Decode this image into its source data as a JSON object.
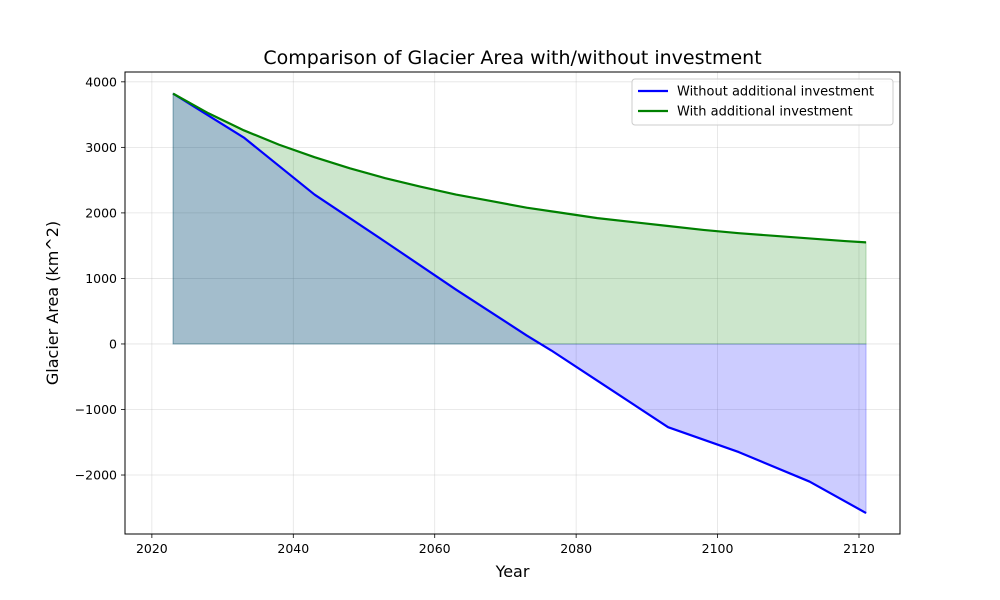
{
  "chart_data": {
    "type": "area",
    "title": "Comparison of Glacier Area with/without investment",
    "xlabel": "Year",
    "ylabel": "Glacier Area (km^2)",
    "xlim": [
      2016.2,
      2125.8
    ],
    "ylim": [
      -2900,
      4150
    ],
    "x_ticks": [
      2020,
      2040,
      2060,
      2080,
      2100,
      2120
    ],
    "x_tick_labels": [
      "2020",
      "2040",
      "2060",
      "2080",
      "2100",
      "2120"
    ],
    "y_ticks": [
      -2000,
      -1000,
      0,
      1000,
      2000,
      3000,
      4000
    ],
    "y_tick_labels": [
      "−2000",
      "−1000",
      "0",
      "1000",
      "2000",
      "3000",
      "4000"
    ],
    "grid": true,
    "legend_position": "top-right",
    "series": [
      {
        "name": "Without additional investment",
        "color": "#0000ff",
        "fill_color": "#0000ff",
        "fill_opacity": 0.2,
        "x": [
          2023,
          2033,
          2043,
          2053,
          2063,
          2073,
          2076.5,
          2083,
          2093,
          2103,
          2113,
          2121
        ],
        "y": [
          3820,
          3150,
          2280,
          1560,
          830,
          130,
          -100,
          -560,
          -1270,
          -1650,
          -2100,
          -2580
        ]
      },
      {
        "name": "With additional investment",
        "color": "#008000",
        "fill_color": "#008000",
        "fill_opacity": 0.2,
        "x": [
          2023,
          2028,
          2033,
          2038,
          2043,
          2048,
          2053,
          2058,
          2063,
          2068,
          2073,
          2078,
          2083,
          2088,
          2093,
          2098,
          2103,
          2108,
          2113,
          2118,
          2121
        ],
        "y": [
          3820,
          3520,
          3260,
          3040,
          2850,
          2680,
          2530,
          2400,
          2280,
          2180,
          2080,
          2000,
          1920,
          1860,
          1800,
          1740,
          1690,
          1650,
          1610,
          1570,
          1550
        ]
      }
    ]
  }
}
